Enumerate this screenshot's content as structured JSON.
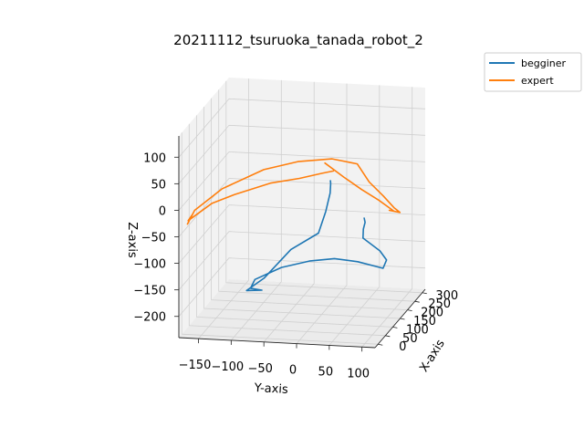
{
  "chart_data": {
    "type": "line",
    "projection": "3d",
    "title": "20211112_tsuruoka_tanada_robot_2",
    "xlabel": "X-axis",
    "ylabel": "Y-axis",
    "zlabel": "Z-axis",
    "xticks": [
      "0",
      "50",
      "100",
      "150",
      "200",
      "250",
      "300"
    ],
    "yticks": [
      "−150",
      "−100",
      "−50",
      "0",
      "50",
      "100"
    ],
    "zticks": [
      "100",
      "50",
      "0",
      "−50",
      "−100",
      "−150",
      "−200"
    ],
    "grid": true,
    "legend_position": "top-right",
    "series": [
      {
        "name": "begginer",
        "color": "#1f77b4",
        "points": [
          [
            -5,
            100,
            -2
          ],
          [
            10,
            98,
            -15
          ],
          [
            25,
            92,
            -33
          ],
          [
            40,
            88,
            -55
          ],
          [
            48,
            112,
            -80
          ],
          [
            58,
            120,
            -100
          ],
          [
            70,
            112,
            -120
          ],
          [
            40,
            80,
            -100
          ],
          [
            15,
            50,
            -88
          ],
          [
            0,
            15,
            -90
          ],
          [
            10,
            -30,
            -108
          ],
          [
            30,
            -75,
            -140
          ],
          [
            45,
            -85,
            -162
          ],
          [
            55,
            -70,
            -168
          ],
          [
            40,
            -90,
            -165
          ],
          [
            25,
            -60,
            -135
          ],
          [
            30,
            -20,
            -80
          ],
          [
            40,
            20,
            -50
          ],
          [
            45,
            30,
            -10
          ],
          [
            30,
            40,
            30
          ],
          [
            25,
            42,
            50
          ],
          [
            10,
            45,
            60
          ]
        ]
      },
      {
        "name": "expert",
        "color": "#ff7f0e",
        "points": [
          [
            -5,
            40,
            98
          ],
          [
            -10,
            70,
            75
          ],
          [
            0,
            95,
            50
          ],
          [
            5,
            120,
            30
          ],
          [
            15,
            140,
            8
          ],
          [
            10,
            135,
            10
          ],
          [
            25,
            148,
            2
          ],
          [
            20,
            140,
            12
          ],
          [
            0,
            128,
            40
          ],
          [
            -15,
            110,
            70
          ],
          [
            -30,
            95,
            108
          ],
          [
            -45,
            60,
            120
          ],
          [
            -55,
            10,
            115
          ],
          [
            -65,
            -40,
            100
          ],
          [
            -80,
            -100,
            65
          ],
          [
            -90,
            -140,
            25
          ],
          [
            -95,
            -150,
            0
          ],
          [
            -80,
            -145,
            15
          ],
          [
            -90,
            -150,
            5
          ],
          [
            -60,
            -120,
            30
          ],
          [
            -40,
            -90,
            42
          ],
          [
            -20,
            -40,
            60
          ],
          [
            0,
            0,
            65
          ],
          [
            20,
            30,
            70
          ],
          [
            30,
            45,
            72
          ]
        ]
      }
    ]
  }
}
